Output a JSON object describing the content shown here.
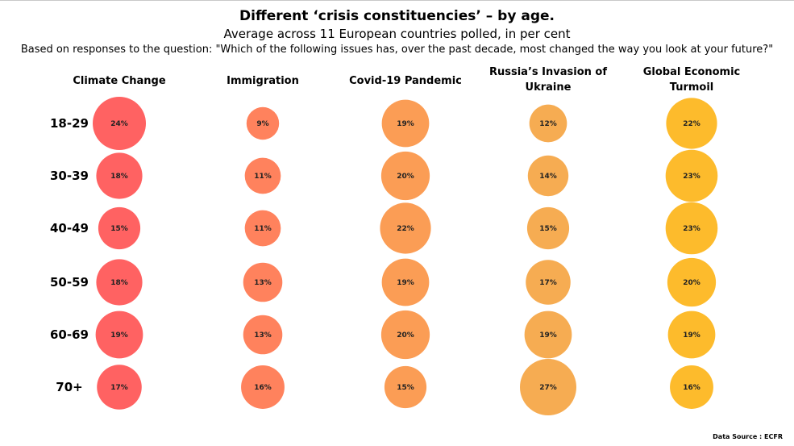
{
  "chart_data": {
    "type": "bubble-matrix",
    "title": "Different ‘crisis constituencies’ – by age.",
    "subtitle": "Average across 11 European countries polled, in per cent",
    "question": "Based on responses to the question: \"Which of the following issues has, over the past decade, most changed the way you look at your future?\"",
    "source": "Data Source : ECFR",
    "columns": [
      {
        "lines": [
          "Climate Change"
        ],
        "color": "#ff6262"
      },
      {
        "lines": [
          "Immigration"
        ],
        "color": "#ff825d"
      },
      {
        "lines": [
          "Covid-19 Pandemic"
        ],
        "color": "#fb9d55"
      },
      {
        "lines": [
          "Russia’s Invasion of",
          "Ukraine"
        ],
        "color": "#f6ac52"
      },
      {
        "lines": [
          "Global Economic",
          "Turmoil"
        ],
        "color": "#fdbb2c"
      }
    ],
    "rows": [
      "18-29",
      "30-39",
      "40-49",
      "50-59",
      "60-69",
      "70+"
    ],
    "values": [
      [
        24,
        9,
        19,
        12,
        22
      ],
      [
        18,
        11,
        20,
        14,
        23
      ],
      [
        15,
        11,
        22,
        15,
        23
      ],
      [
        18,
        13,
        19,
        17,
        20
      ],
      [
        19,
        13,
        20,
        19,
        19
      ],
      [
        17,
        16,
        15,
        27,
        16
      ]
    ],
    "unit": "%"
  }
}
